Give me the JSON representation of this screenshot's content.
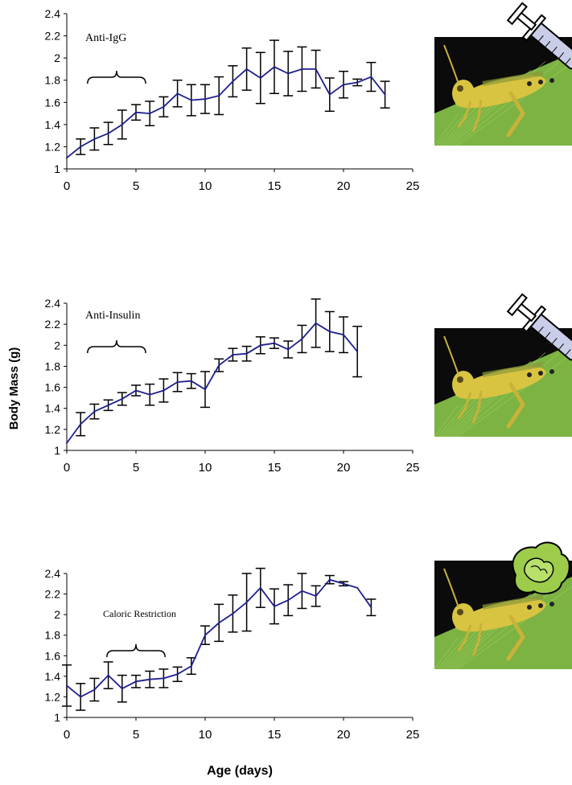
{
  "figure": {
    "ylabel": "Body Mass (g)",
    "xlabel": "Age (days)"
  },
  "colors": {
    "line": "#1f1f8f",
    "errorbar": "#000000",
    "axis": "#000000",
    "grasshopper_bg": "#0b0b0b",
    "leaf": "#7cb342",
    "grasshopper_body": "#d8c441",
    "syringe": "#c9cde8",
    "lettuce": "#9ccc4a"
  },
  "icons": [
    "grasshopper-photo",
    "syringe-icon",
    "lettuce-icon"
  ],
  "chart_data": [
    {
      "type": "line",
      "annotation": "Anti-IgG",
      "xlim": [
        0,
        25
      ],
      "ylim": [
        1,
        2.4
      ],
      "x_ticks": [
        "0",
        "5",
        "10",
        "15",
        "20",
        "25"
      ],
      "y_ticks": [
        "1",
        "1.2",
        "1.4",
        "1.6",
        "1.8",
        "2",
        "2.2",
        "2.4"
      ],
      "x": [
        0,
        1,
        2,
        3,
        4,
        5,
        6,
        7,
        8,
        9,
        10,
        11,
        12,
        13,
        14,
        15,
        16,
        17,
        18,
        19,
        20,
        21,
        22,
        23
      ],
      "y": [
        1.1,
        1.2,
        1.27,
        1.32,
        1.4,
        1.51,
        1.5,
        1.56,
        1.68,
        1.62,
        1.63,
        1.66,
        1.79,
        1.9,
        1.82,
        1.92,
        1.86,
        1.9,
        1.9,
        1.67,
        1.76,
        1.78,
        1.83,
        1.67
      ],
      "err": [
        0.0,
        0.07,
        0.1,
        0.1,
        0.13,
        0.07,
        0.11,
        0.09,
        0.12,
        0.14,
        0.13,
        0.17,
        0.14,
        0.19,
        0.23,
        0.24,
        0.2,
        0.2,
        0.17,
        0.15,
        0.12,
        0.03,
        0.13,
        0.12
      ],
      "bracket": [
        1.5,
        5.7
      ],
      "picture": "syringe"
    },
    {
      "type": "line",
      "annotation": "Anti-Insulin",
      "xlim": [
        0,
        25
      ],
      "ylim": [
        1,
        2.4
      ],
      "x_ticks": [
        "0",
        "5",
        "10",
        "15",
        "20",
        "25"
      ],
      "y_ticks": [
        "1",
        "1.2",
        "1.4",
        "1.6",
        "1.8",
        "2",
        "2.2",
        "2.4"
      ],
      "x": [
        0,
        1,
        2,
        3,
        4,
        5,
        6,
        7,
        8,
        9,
        10,
        11,
        12,
        13,
        14,
        15,
        16,
        17,
        18,
        19,
        20,
        21
      ],
      "y": [
        1.07,
        1.25,
        1.37,
        1.43,
        1.49,
        1.57,
        1.53,
        1.57,
        1.65,
        1.66,
        1.58,
        1.81,
        1.91,
        1.92,
        2.0,
        2.02,
        1.96,
        2.06,
        2.21,
        2.13,
        2.1,
        1.94
      ],
      "err": [
        0.0,
        0.11,
        0.07,
        0.05,
        0.06,
        0.05,
        0.1,
        0.11,
        0.09,
        0.07,
        0.17,
        0.06,
        0.06,
        0.07,
        0.08,
        0.05,
        0.08,
        0.13,
        0.23,
        0.19,
        0.17,
        0.24
      ],
      "bracket": [
        1.5,
        5.7
      ],
      "picture": "syringe"
    },
    {
      "type": "line",
      "annotation": "Caloric Restriction",
      "xlim": [
        0,
        25
      ],
      "ylim": [
        1,
        2.4
      ],
      "x_ticks": [
        "0",
        "5",
        "10",
        "15",
        "20",
        "25"
      ],
      "y_ticks": [
        "1",
        "1.2",
        "1.4",
        "1.6",
        "1.8",
        "2",
        "2.2",
        "2.4"
      ],
      "x": [
        0,
        1,
        2,
        3,
        4,
        5,
        6,
        7,
        8,
        9,
        10,
        11,
        12,
        13,
        14,
        15,
        16,
        17,
        18,
        19,
        20,
        21,
        22
      ],
      "y": [
        1.31,
        1.2,
        1.27,
        1.41,
        1.28,
        1.35,
        1.37,
        1.38,
        1.42,
        1.5,
        1.8,
        1.92,
        2.01,
        2.12,
        2.26,
        2.08,
        2.14,
        2.23,
        2.18,
        2.34,
        2.3,
        2.26,
        2.07
      ],
      "err": [
        0.2,
        0.13,
        0.11,
        0.13,
        0.13,
        0.06,
        0.08,
        0.09,
        0.07,
        0.08,
        0.09,
        0.18,
        0.18,
        0.28,
        0.19,
        0.17,
        0.15,
        0.17,
        0.1,
        0.04,
        0.02,
        0.0,
        0.08
      ],
      "bracket": [
        2.9,
        7.1
      ],
      "picture": "lettuce"
    }
  ]
}
